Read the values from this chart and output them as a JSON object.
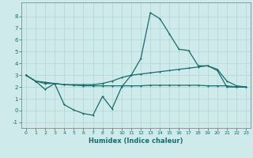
{
  "xlabel": "Humidex (Indice chaleur)",
  "xlim": [
    -0.5,
    23.5
  ],
  "ylim": [
    -1.5,
    9.2
  ],
  "yticks": [
    -1,
    0,
    1,
    2,
    3,
    4,
    5,
    6,
    7,
    8
  ],
  "xticks": [
    0,
    1,
    2,
    3,
    4,
    5,
    6,
    7,
    8,
    9,
    10,
    11,
    12,
    13,
    14,
    15,
    16,
    17,
    18,
    19,
    20,
    21,
    22,
    23
  ],
  "bg_color": "#ceeaea",
  "grid_color": "#b8d8d8",
  "line_color": "#1a6b6b",
  "line1_x": [
    0,
    1,
    2,
    3,
    4,
    5,
    6,
    7,
    8,
    9,
    10,
    11,
    12,
    13,
    14,
    15,
    16,
    17,
    18,
    19,
    20,
    21,
    22,
    23
  ],
  "line1_y": [
    3.0,
    2.5,
    1.8,
    2.3,
    0.5,
    0.05,
    -0.25,
    -0.4,
    1.2,
    0.15,
    2.0,
    3.0,
    4.4,
    8.3,
    7.8,
    6.5,
    5.2,
    5.1,
    3.8,
    3.8,
    3.4,
    2.0,
    2.0,
    2.0
  ],
  "line2_x": [
    0,
    1,
    2,
    3,
    4,
    5,
    6,
    7,
    8,
    9,
    10,
    11,
    12,
    13,
    14,
    15,
    16,
    17,
    18,
    19,
    20,
    21,
    22,
    23
  ],
  "line2_y": [
    3.0,
    2.5,
    2.3,
    2.3,
    2.2,
    2.15,
    2.1,
    2.1,
    2.1,
    2.1,
    2.1,
    2.1,
    2.1,
    2.15,
    2.15,
    2.15,
    2.15,
    2.15,
    2.15,
    2.1,
    2.1,
    2.1,
    2.0,
    2.0
  ],
  "line3_x": [
    0,
    1,
    2,
    3,
    4,
    5,
    6,
    7,
    8,
    9,
    10,
    11,
    12,
    13,
    14,
    15,
    16,
    17,
    18,
    19,
    20,
    21,
    22,
    23
  ],
  "line3_y": [
    3.0,
    2.5,
    2.4,
    2.3,
    2.2,
    2.2,
    2.2,
    2.2,
    2.3,
    2.5,
    2.8,
    3.0,
    3.1,
    3.2,
    3.3,
    3.4,
    3.5,
    3.6,
    3.7,
    3.8,
    3.5,
    2.5,
    2.1,
    2.0
  ]
}
